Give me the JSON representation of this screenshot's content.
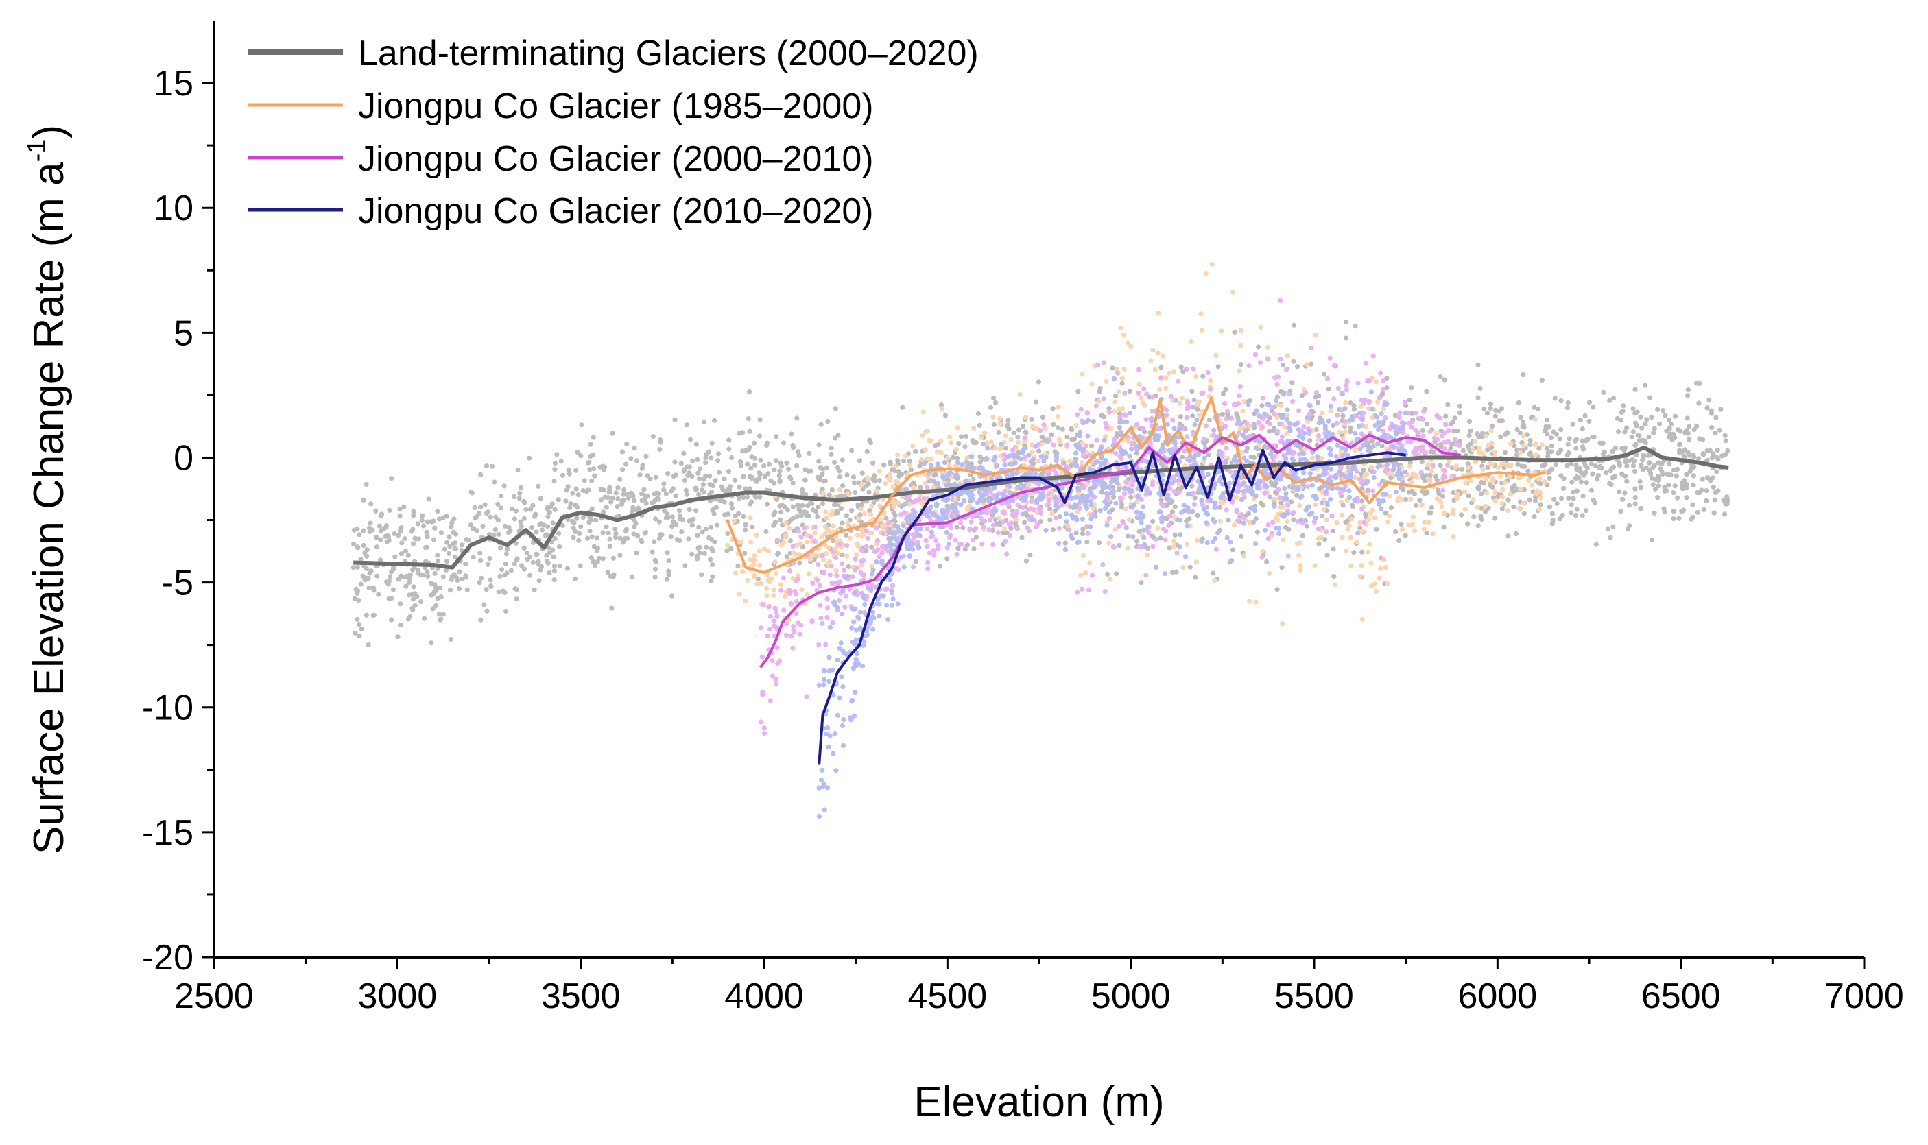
{
  "chart_data": {
    "type": "scatter",
    "title": "",
    "xlabel": "Elevation (m)",
    "ylabel": "Surface Elevation Change Rate (m a",
    "ylabel_sup": "-1",
    "ylabel_close": ")",
    "xlim": [
      2500,
      7000
    ],
    "ylim": [
      -20,
      17.5
    ],
    "x_ticks": [
      2500,
      3000,
      3500,
      4000,
      4500,
      5000,
      5500,
      6000,
      6500,
      7000
    ],
    "x_tick_labels": [
      "2500",
      "3000",
      "3500",
      "4000",
      "4500",
      "5000",
      "5500",
      "6000",
      "6500",
      "7000"
    ],
    "y_ticks": [
      -20,
      -15,
      -10,
      -5,
      0,
      5,
      10,
      15
    ],
    "y_tick_labels": [
      "-20",
      "-15",
      "-10",
      "-5",
      "0",
      "5",
      "10",
      "15"
    ],
    "grid": false,
    "legend_position": "top-left",
    "series": [
      {
        "name": "Land-terminating Glaciers (2000–2020)",
        "color": "#6e6e6e",
        "scatter_color": "#bcbcbc",
        "x": [
          2880,
          3100,
          3150,
          3200,
          3250,
          3300,
          3350,
          3400,
          3450,
          3500,
          3550,
          3600,
          3650,
          3700,
          3750,
          3800,
          3850,
          3900,
          3950,
          4000,
          4100,
          4200,
          4300,
          4400,
          4500,
          4600,
          4700,
          4800,
          4900,
          5000,
          5100,
          5200,
          5300,
          5400,
          5500,
          5600,
          5700,
          5800,
          5900,
          6000,
          6100,
          6200,
          6300,
          6350,
          6400,
          6450,
          6500,
          6550,
          6600,
          6630
        ],
        "y": [
          -4.2,
          -4.3,
          -4.4,
          -3.5,
          -3.2,
          -3.5,
          -2.9,
          -3.6,
          -2.4,
          -2.2,
          -2.3,
          -2.5,
          -2.3,
          -2.0,
          -1.9,
          -1.7,
          -1.6,
          -1.5,
          -1.4,
          -1.4,
          -1.6,
          -1.7,
          -1.6,
          -1.4,
          -1.3,
          -1.1,
          -0.9,
          -0.8,
          -0.7,
          -0.6,
          -0.5,
          -0.4,
          -0.35,
          -0.3,
          -0.25,
          -0.2,
          -0.1,
          0.0,
          0.0,
          -0.05,
          -0.1,
          -0.1,
          -0.05,
          0.1,
          0.4,
          0.0,
          -0.1,
          -0.2,
          -0.35,
          -0.4
        ]
      },
      {
        "name": "Jiongpu Co Glacier (1985–2000)",
        "color": "#f7a35c",
        "scatter_color": "#fdd4b0",
        "x": [
          3900,
          3950,
          4000,
          4050,
          4100,
          4200,
          4300,
          4350,
          4400,
          4450,
          4500,
          4550,
          4600,
          4650,
          4700,
          4750,
          4800,
          4850,
          4900,
          4950,
          5000,
          5030,
          5060,
          5080,
          5100,
          5130,
          5160,
          5190,
          5220,
          5250,
          5280,
          5310,
          5340,
          5370,
          5400,
          5450,
          5500,
          5550,
          5600,
          5650,
          5700,
          5800,
          5900,
          6000,
          6100,
          6130
        ],
        "y": [
          -2.5,
          -4.4,
          -4.6,
          -4.3,
          -4.0,
          -3.0,
          -2.6,
          -1.5,
          -0.7,
          -0.5,
          -0.45,
          -0.5,
          -0.7,
          -0.6,
          -0.4,
          -0.5,
          -0.3,
          -0.8,
          0.1,
          0.3,
          1.2,
          0.4,
          1.0,
          2.3,
          0.5,
          1.1,
          0.2,
          1.4,
          2.4,
          0.6,
          1.0,
          -0.8,
          -0.3,
          -0.9,
          -0.4,
          -1.0,
          -0.8,
          -1.1,
          -0.9,
          -1.8,
          -1.0,
          -1.2,
          -0.8,
          -0.6,
          -0.7,
          -0.6
        ]
      },
      {
        "name": "Jiongpu Co Glacier (2000–2010)",
        "color": "#cc44cc",
        "scatter_color": "#e9b2f4",
        "x": [
          3990,
          4010,
          4030,
          4050,
          4080,
          4100,
          4150,
          4200,
          4250,
          4300,
          4350,
          4400,
          4500,
          4600,
          4700,
          4800,
          4900,
          5000,
          5050,
          5100,
          5150,
          5200,
          5250,
          5300,
          5350,
          5400,
          5450,
          5500,
          5550,
          5600,
          5650,
          5700,
          5750,
          5800,
          5850,
          5900
        ],
        "y": [
          -8.4,
          -8.0,
          -7.4,
          -6.6,
          -6.1,
          -5.8,
          -5.4,
          -5.2,
          -5.1,
          -4.9,
          -4.0,
          -2.7,
          -2.6,
          -2.0,
          -1.4,
          -1.1,
          -0.8,
          -0.5,
          0.4,
          -0.2,
          0.6,
          0.2,
          0.8,
          0.5,
          0.9,
          0.2,
          0.7,
          0.3,
          0.8,
          0.4,
          0.9,
          0.6,
          0.8,
          0.7,
          0.2,
          0.1
        ]
      },
      {
        "name": "Jiongpu Co Glacier (2010–2020)",
        "color": "#1c1c8c",
        "scatter_color": "#b4bef5",
        "x": [
          4150,
          4160,
          4180,
          4200,
          4230,
          4260,
          4290,
          4320,
          4350,
          4380,
          4420,
          4450,
          4500,
          4550,
          4600,
          4650,
          4700,
          4750,
          4800,
          4820,
          4850,
          4900,
          4950,
          5000,
          5030,
          5060,
          5090,
          5120,
          5150,
          5180,
          5210,
          5240,
          5270,
          5300,
          5330,
          5360,
          5390,
          5420,
          5450,
          5500,
          5550,
          5600,
          5650,
          5700,
          5750
        ],
        "y": [
          -12.3,
          -10.3,
          -9.5,
          -8.6,
          -8.0,
          -7.5,
          -6.0,
          -5.0,
          -4.4,
          -3.2,
          -2.4,
          -1.7,
          -1.5,
          -1.1,
          -1.0,
          -0.9,
          -0.8,
          -0.8,
          -1.2,
          -1.8,
          -0.7,
          -0.6,
          -0.3,
          -0.2,
          -1.3,
          0.2,
          -1.5,
          0.1,
          -1.2,
          -0.4,
          -1.6,
          0.0,
          -1.7,
          -0.3,
          -1.1,
          0.3,
          -0.8,
          -0.2,
          -0.5,
          -0.3,
          -0.2,
          0.0,
          0.1,
          0.2,
          0.1
        ]
      }
    ]
  }
}
